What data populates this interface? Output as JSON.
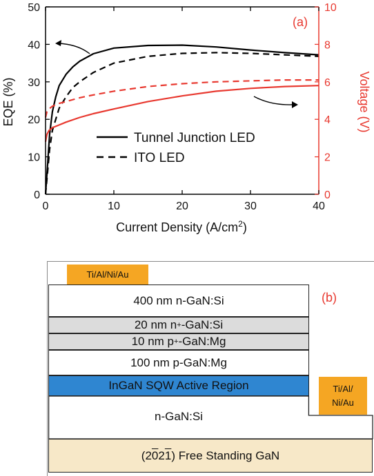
{
  "chart_data": {
    "type": "line",
    "panel_label": "(a)",
    "xlabel": "Current Density (A/cm",
    "xlabel_sup": "2",
    "xlabel_end": ")",
    "ylabel_left": "EQE (%)",
    "ylabel_right": "Voltage (V)",
    "xlim": [
      0,
      40
    ],
    "ylim_left": [
      0,
      50
    ],
    "ylim_right": [
      0,
      10
    ],
    "x_ticks": [
      "0",
      "10",
      "20",
      "30",
      "40"
    ],
    "y_left_ticks": [
      "0",
      "10",
      "20",
      "30",
      "40",
      "50"
    ],
    "y_right_ticks": [
      "0",
      "2",
      "4",
      "6",
      "8",
      "10"
    ],
    "legend": [
      "Tunnel Junction LED",
      "ITO LED"
    ],
    "colors": {
      "eqe": "#000000",
      "voltage": "#e8382f"
    },
    "series": [
      {
        "name": "Tunnel Junction LED",
        "axis": "left",
        "style": "solid",
        "color": "#000000",
        "x": [
          0,
          0.3,
          0.6,
          1,
          1.5,
          2,
          3,
          4,
          5,
          7,
          10,
          15,
          20,
          25,
          30,
          35,
          40
        ],
        "y": [
          0,
          8,
          16,
          22,
          26,
          29,
          32,
          34,
          35.5,
          37.5,
          39,
          39.7,
          39.8,
          39.3,
          38.5,
          37.8,
          37.2
        ]
      },
      {
        "name": "ITO LED",
        "axis": "left",
        "style": "dashed",
        "color": "#000000",
        "x": [
          0,
          0.3,
          0.6,
          1,
          1.5,
          2,
          3,
          4,
          5,
          7,
          10,
          15,
          20,
          25,
          30,
          35,
          40
        ],
        "y": [
          0,
          6,
          12,
          17,
          20,
          23,
          26,
          28.5,
          30,
          32.5,
          35,
          36.8,
          37.6,
          37.8,
          37.6,
          37.2,
          36.8
        ]
      },
      {
        "name": "Tunnel Junction LED",
        "axis": "right",
        "style": "solid",
        "color": "#e8382f",
        "x": [
          0,
          0.2,
          0.5,
          1,
          2,
          3,
          5,
          7,
          10,
          15,
          20,
          25,
          30,
          35,
          40
        ],
        "y": [
          2.8,
          3.2,
          3.4,
          3.55,
          3.7,
          3.85,
          4.1,
          4.3,
          4.55,
          4.95,
          5.25,
          5.5,
          5.65,
          5.75,
          5.8
        ]
      },
      {
        "name": "ITO LED",
        "axis": "right",
        "style": "dashed",
        "color": "#e8382f",
        "x": [
          0,
          0.2,
          0.5,
          1,
          2,
          3,
          5,
          7,
          10,
          15,
          20,
          25,
          30,
          35,
          40
        ],
        "y": [
          4.1,
          4.4,
          4.55,
          4.7,
          4.85,
          4.95,
          5.15,
          5.3,
          5.5,
          5.75,
          5.9,
          6.0,
          6.05,
          6.1,
          6.1
        ]
      }
    ]
  },
  "diagram": {
    "panel_label": "(b)",
    "contact_top": "Ti/Al/Ni/Au",
    "contact_right_line1": "Ti/Al/",
    "contact_right_line2": "Ni/Au",
    "layers": [
      {
        "label": "400 nm n-GaN:Si",
        "fill": "#ffffff"
      },
      {
        "label_pre": "20 nm n",
        "label_sup": "+",
        "label_post": "-GaN:Si",
        "fill": "#dcdcdc"
      },
      {
        "label_pre": "10 nm p",
        "label_sup": "+",
        "label_post": "-GaN:Mg",
        "fill": "#dcdcdc"
      },
      {
        "label": "100 nm p-GaN:Mg",
        "fill": "#ffffff"
      },
      {
        "label": "InGaN SQW Active Region",
        "fill": "#2f86d1"
      },
      {
        "label": "n-GaN:Si",
        "fill": "#ffffff"
      },
      {
        "label_pre": "(2",
        "label_bar1": "0",
        "label_mid": "2",
        "label_bar2": "1",
        "label_post": ") Free Standing GaN",
        "fill": "#f7e8c8"
      }
    ]
  }
}
